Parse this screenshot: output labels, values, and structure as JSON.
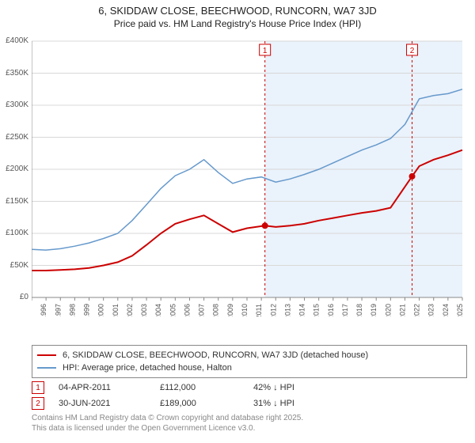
{
  "title_line1": "6, SKIDDAW CLOSE, BEECHWOOD, RUNCORN, WA7 3JD",
  "title_line2": "Price paid vs. HM Land Registry's House Price Index (HPI)",
  "chart": {
    "type": "line",
    "background_color": "#ffffff",
    "grid_color": "#d8d8d8",
    "axis_color": "#888888",
    "ylim": [
      0,
      400000
    ],
    "ytick_step": 50000,
    "yticks": [
      "£0",
      "£50K",
      "£100K",
      "£150K",
      "£200K",
      "£250K",
      "£300K",
      "£350K",
      "£400K"
    ],
    "xlim": [
      1995,
      2025
    ],
    "xticks": [
      1995,
      1996,
      1997,
      1998,
      1999,
      2000,
      2001,
      2002,
      2003,
      2004,
      2005,
      2006,
      2007,
      2008,
      2009,
      2010,
      2011,
      2012,
      2013,
      2014,
      2015,
      2016,
      2017,
      2018,
      2019,
      2020,
      2021,
      2022,
      2023,
      2024,
      2025
    ],
    "shaded_region": {
      "from": 2011.25,
      "to": 2025,
      "color": "#eaf2fb"
    },
    "series": [
      {
        "name": "price_paid",
        "label": "6, SKIDDAW CLOSE, BEECHWOOD, RUNCORN, WA7 3JD (detached house)",
        "color": "#cc0000",
        "line_width": 2,
        "points": [
          [
            1995,
            42000
          ],
          [
            1996,
            42000
          ],
          [
            1997,
            43000
          ],
          [
            1998,
            44000
          ],
          [
            1999,
            46000
          ],
          [
            2000,
            50000
          ],
          [
            2001,
            55000
          ],
          [
            2002,
            65000
          ],
          [
            2003,
            82000
          ],
          [
            2004,
            100000
          ],
          [
            2005,
            115000
          ],
          [
            2006,
            122000
          ],
          [
            2007,
            128000
          ],
          [
            2008,
            115000
          ],
          [
            2009,
            102000
          ],
          [
            2010,
            108000
          ],
          [
            2011.25,
            112000
          ],
          [
            2012,
            110000
          ],
          [
            2013,
            112000
          ],
          [
            2014,
            115000
          ],
          [
            2015,
            120000
          ],
          [
            2016,
            124000
          ],
          [
            2017,
            128000
          ],
          [
            2018,
            132000
          ],
          [
            2019,
            135000
          ],
          [
            2020,
            140000
          ],
          [
            2021.5,
            189000
          ],
          [
            2022,
            205000
          ],
          [
            2023,
            215000
          ],
          [
            2024,
            222000
          ],
          [
            2025,
            230000
          ]
        ]
      },
      {
        "name": "hpi",
        "label": "HPI: Average price, detached house, Halton",
        "color": "#6699cc",
        "line_width": 1.5,
        "points": [
          [
            1995,
            75000
          ],
          [
            1996,
            74000
          ],
          [
            1997,
            76000
          ],
          [
            1998,
            80000
          ],
          [
            1999,
            85000
          ],
          [
            2000,
            92000
          ],
          [
            2001,
            100000
          ],
          [
            2002,
            120000
          ],
          [
            2003,
            145000
          ],
          [
            2004,
            170000
          ],
          [
            2005,
            190000
          ],
          [
            2006,
            200000
          ],
          [
            2007,
            215000
          ],
          [
            2008,
            195000
          ],
          [
            2009,
            178000
          ],
          [
            2010,
            185000
          ],
          [
            2011,
            188000
          ],
          [
            2012,
            180000
          ],
          [
            2013,
            185000
          ],
          [
            2014,
            192000
          ],
          [
            2015,
            200000
          ],
          [
            2016,
            210000
          ],
          [
            2017,
            220000
          ],
          [
            2018,
            230000
          ],
          [
            2019,
            238000
          ],
          [
            2020,
            248000
          ],
          [
            2021,
            270000
          ],
          [
            2022,
            310000
          ],
          [
            2023,
            315000
          ],
          [
            2024,
            318000
          ],
          [
            2025,
            325000
          ]
        ]
      }
    ],
    "sale_markers": [
      {
        "id": "1",
        "x": 2011.25,
        "y": 112000
      },
      {
        "id": "2",
        "x": 2021.5,
        "y": 189000
      }
    ]
  },
  "legend": {
    "items": [
      {
        "color": "#cc0000",
        "label": "6, SKIDDAW CLOSE, BEECHWOOD, RUNCORN, WA7 3JD (detached house)"
      },
      {
        "color": "#6699cc",
        "label": "HPI: Average price, detached house, Halton"
      }
    ]
  },
  "sales_table": {
    "rows": [
      {
        "marker": "1",
        "date": "04-APR-2011",
        "price": "£112,000",
        "pct": "42% ↓ HPI"
      },
      {
        "marker": "2",
        "date": "30-JUN-2021",
        "price": "£189,000",
        "pct": "31% ↓ HPI"
      }
    ]
  },
  "footer": {
    "line1": "Contains HM Land Registry data © Crown copyright and database right 2025.",
    "line2": "This data is licensed under the Open Government Licence v3.0."
  }
}
